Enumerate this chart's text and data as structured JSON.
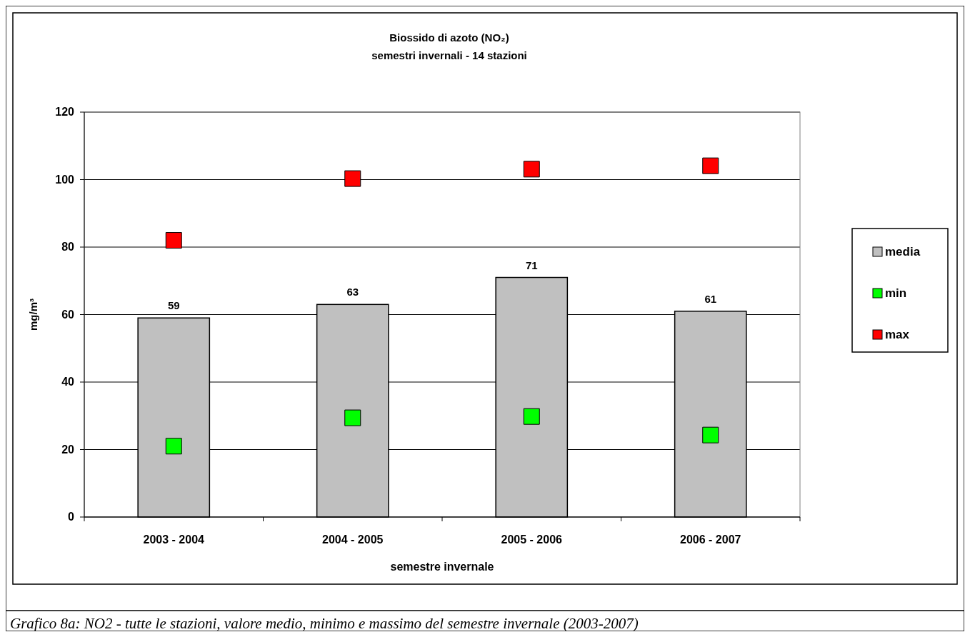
{
  "chart_data": {
    "type": "bar",
    "title": "Biossido di azoto (NO₂)",
    "subtitle": "semestri invernali - 14 stazioni",
    "xlabel": "semestre invernale",
    "ylabel": "mg/m³",
    "annotations": [
      "Grafico 8a: NO2  - tutte le stazioni, valore medio, minimo e massimo del semestre invernale (2003-2007)"
    ],
    "categories": [
      "2003 - 2004",
      "2004 - 2005",
      "2005 - 2006",
      "2006 - 2007"
    ],
    "series": [
      {
        "name": "media",
        "color": "#c0c0c0",
        "values": [
          59,
          63,
          71,
          61
        ],
        "value_labels": [
          "59",
          "63",
          "71",
          "61"
        ]
      },
      {
        "name": "min",
        "type": "scatter",
        "color": "#00ff00",
        "values": [
          21,
          29.4,
          29.8,
          24.3
        ]
      },
      {
        "name": "max",
        "type": "scatter",
        "color": "#ff0000",
        "values": [
          82,
          100.3,
          103.1,
          104.1
        ]
      }
    ],
    "ylim": [
      0,
      120
    ],
    "yticks": [
      0,
      20,
      40,
      60,
      80,
      100,
      120
    ],
    "grid": "y",
    "legend": "right",
    "marker": "square"
  }
}
